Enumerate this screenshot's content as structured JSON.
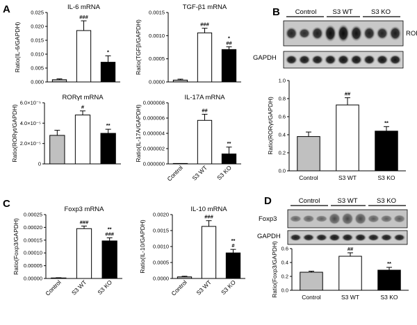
{
  "figure": {
    "colors": {
      "control": "#c0c0c0",
      "wt": "#ffffff",
      "ko": "#000000",
      "axis": "#000000"
    },
    "panel_letters": [
      "A",
      "B",
      "C",
      "D"
    ],
    "blots": {
      "B": {
        "groups": [
          "Control",
          "S3 WT",
          "S3 KO"
        ],
        "bands": [
          "RORγt",
          "GAPDH"
        ]
      },
      "D": {
        "groups": [
          "Control",
          "S3 WT",
          "S3 KO"
        ],
        "bands": [
          "Foxp3",
          "GAPDH"
        ]
      }
    }
  },
  "chart_data": [
    {
      "id": "il6",
      "type": "bar",
      "title": "IL-6 mRNA",
      "ylabel": "Ratio(IL-6/GAPDH)",
      "categories": [
        "Control",
        "S3 WT",
        "S3 KO"
      ],
      "show_xlabels": false,
      "values": [
        0.0008,
        0.0185,
        0.0071
      ],
      "errors": [
        0.0003,
        0.0035,
        0.0023
      ],
      "ylim": [
        0,
        0.025
      ],
      "yticks": [
        [
          "0.000",
          0
        ],
        [
          "0.005",
          0.005
        ],
        [
          "0.010",
          0.01
        ],
        [
          "0.015",
          0.015
        ],
        [
          "0.020",
          0.02
        ],
        [
          "0.025",
          0.025
        ]
      ],
      "annotations": [
        "",
        "###",
        "*"
      ]
    },
    {
      "id": "tgfb1",
      "type": "bar",
      "title": "TGF-β1 mRNA",
      "ylabel": "Ratio(TGFβ/GAPDH)",
      "categories": [
        "Control",
        "S3 WT",
        "S3 KO"
      ],
      "show_xlabels": false,
      "values": [
        4e-05,
        0.00106,
        0.0007
      ],
      "errors": [
        2e-05,
        0.0001,
        6e-05
      ],
      "ylim": [
        0,
        0.0015
      ],
      "yticks": [
        [
          "0.0000",
          0
        ],
        [
          "0.0005",
          0.0005
        ],
        [
          "0.0010",
          0.001
        ],
        [
          "0.0015",
          0.0015
        ]
      ],
      "annotations": [
        "",
        "###",
        "*\n##"
      ]
    },
    {
      "id": "rorgt_mrna",
      "type": "bar",
      "title": "RORγt mRNA",
      "ylabel": "Ratio(RORγt/GAPDH)",
      "categories": [
        "Control",
        "S3 WT",
        "S3 KO"
      ],
      "show_xlabels": false,
      "values": [
        2.8e-05,
        4.8e-05,
        3e-05
      ],
      "errors": [
        5e-06,
        4e-06,
        4e-06
      ],
      "ylim": [
        0,
        6e-05
      ],
      "yticks": [
        [
          "0",
          0
        ],
        [
          "2.0×10⁻⁵",
          2e-05
        ],
        [
          "4.0×10⁻⁵",
          4e-05
        ],
        [
          "6.0×10⁻⁵",
          6e-05
        ]
      ],
      "annotations": [
        "",
        "#",
        "**"
      ]
    },
    {
      "id": "il17a",
      "type": "bar",
      "title": "IL-17A  mRNA",
      "ylabel": "Ratio(IL-17A/GAPDH)",
      "categories": [
        "Control",
        "S3 WT",
        "S3 KO"
      ],
      "show_xlabels": true,
      "values": [
        0.0,
        5.7e-06,
        1.3e-06
      ],
      "errors": [
        0,
        8e-07,
        9e-07
      ],
      "ylim": [
        0,
        8e-06
      ],
      "yticks": [
        [
          "0.000000",
          0
        ],
        [
          "0.000002",
          2e-06
        ],
        [
          "0.000004",
          4e-06
        ],
        [
          "0.000006",
          6e-06
        ],
        [
          "0.000008",
          8e-06
        ]
      ],
      "annotations": [
        "",
        "##",
        "**"
      ]
    },
    {
      "id": "rorgt_wb",
      "type": "bar",
      "title": "",
      "ylabel": "Ratio(RORγt/GAPDH)",
      "categories": [
        "Control",
        "S3 WT",
        "S3 KO"
      ],
      "show_xlabels": true,
      "values": [
        0.38,
        0.73,
        0.44
      ],
      "errors": [
        0.05,
        0.08,
        0.05
      ],
      "ylim": [
        0,
        1.0
      ],
      "yticks": [
        [
          "0.0",
          0
        ],
        [
          "0.2",
          0.2
        ],
        [
          "0.4",
          0.4
        ],
        [
          "0.6",
          0.6
        ],
        [
          "0.8",
          0.8
        ],
        [
          "1.0",
          1.0
        ]
      ],
      "annotations": [
        "",
        "##",
        "**"
      ]
    },
    {
      "id": "foxp3_mrna",
      "type": "bar",
      "title": "Foxp3 mRNA",
      "ylabel": "Ratio(Foxp3/GAPDH)",
      "categories": [
        "Control",
        "S3 WT",
        "S3 KO"
      ],
      "show_xlabels": true,
      "values": [
        2e-06,
        0.000195,
        0.000147
      ],
      "errors": [
        1e-06,
        1e-05,
        1.2e-05
      ],
      "ylim": [
        0,
        0.00025
      ],
      "yticks": [
        [
          "0.00000",
          0
        ],
        [
          "0.00005",
          5e-05
        ],
        [
          "0.00010",
          0.0001
        ],
        [
          "0.00015",
          0.00015
        ],
        [
          "0.00020",
          0.0002
        ],
        [
          "0.00025",
          0.00025
        ]
      ],
      "annotations": [
        "",
        "###",
        "**\n###"
      ]
    },
    {
      "id": "il10",
      "type": "bar",
      "title": "IL-10 mRNA",
      "ylabel": "Ratio(IL-10/GAPDH)",
      "categories": [
        "Control",
        "S3 WT",
        "S3 KO"
      ],
      "show_xlabels": true,
      "values": [
        5e-05,
        0.00163,
        0.0008
      ],
      "errors": [
        2e-05,
        0.00018,
        0.00011
      ],
      "ylim": [
        0,
        0.002
      ],
      "yticks": [
        [
          "0.0000",
          0
        ],
        [
          "0.0005",
          0.0005
        ],
        [
          "0.0010",
          0.001
        ],
        [
          "0.0015",
          0.0015
        ],
        [
          "0.0020",
          0.002
        ]
      ],
      "annotations": [
        "",
        "###",
        "**\n#"
      ]
    },
    {
      "id": "foxp3_wb",
      "type": "bar",
      "title": "",
      "ylabel": "Ratio(Foxp3/GAPDH)",
      "categories": [
        "Control",
        "S3 WT",
        "S3 KO"
      ],
      "show_xlabels": true,
      "values": [
        0.26,
        0.49,
        0.29
      ],
      "errors": [
        0.015,
        0.05,
        0.04
      ],
      "ylim": [
        0,
        0.6
      ],
      "yticks": [
        [
          "0.0",
          0
        ],
        [
          "0.2",
          0.2
        ],
        [
          "0.4",
          0.4
        ],
        [
          "0.6",
          0.6
        ]
      ],
      "annotations": [
        "",
        "##",
        "**"
      ]
    }
  ]
}
